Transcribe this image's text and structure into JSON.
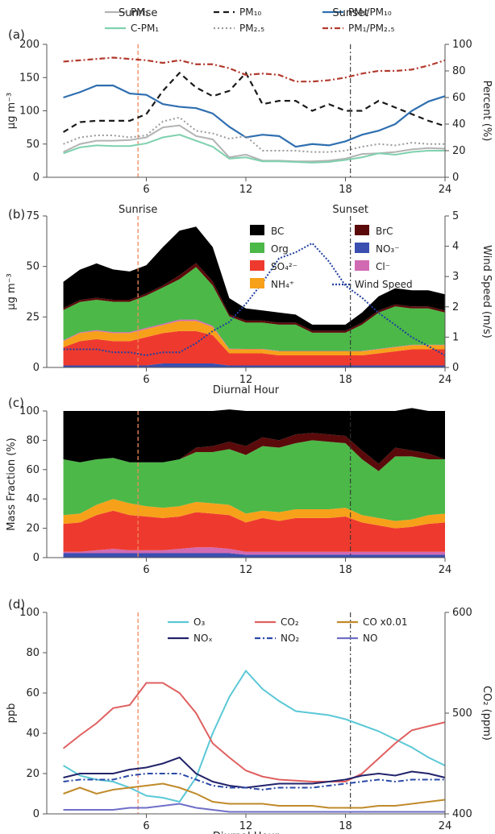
{
  "colors": {
    "pm1": "#b3b3b3",
    "cpm1": "#7fd1ae",
    "pm10": "#1a1a1a",
    "pm25": "#9a9a9a",
    "pm1_pm10": "#2f6fb0",
    "pm1_pm25": "#b23a2e",
    "bc": "#000000",
    "brc": "#5a0a0a",
    "org": "#4cb848",
    "no3": "#3a4fb0",
    "so4": "#ee3a2e",
    "cl": "#d16ab3",
    "nh4": "#f7a11a",
    "wind": "#1f3f9f",
    "o3": "#5bc8d6",
    "co2": "#e06060",
    "co": "#c08a2a",
    "nox": "#23236b",
    "no2": "#2b4aa8",
    "no": "#6f6fc8",
    "sunrise": "#f08a5a",
    "sunset": "#333333"
  },
  "labels": {
    "sunrise": "Sunrise",
    "sunset": "Sunset",
    "diurnal_hour": "Diurnal Hour"
  },
  "chart_data": [
    {
      "panel": "(a)",
      "type": "line",
      "x": [
        1,
        2,
        3,
        4,
        5,
        6,
        7,
        8,
        9,
        10,
        11,
        12,
        13,
        14,
        15,
        16,
        17,
        18,
        19,
        20,
        21,
        22,
        23,
        24
      ],
      "xlim": [
        0,
        24
      ],
      "xticks": [
        "6",
        "12",
        "18",
        "24"
      ],
      "ylabel": "μg m⁻³",
      "ylim": [
        0,
        200
      ],
      "yticks": [
        "0",
        "50",
        "100",
        "150",
        "200"
      ],
      "y2label": "Percent (%)",
      "y2lim": [
        0,
        100
      ],
      "y2ticks": [
        "0",
        "20",
        "40",
        "60",
        "80",
        "100"
      ],
      "sunrise_hour": 5.5,
      "sunset_hour": 18.3,
      "series": [
        {
          "key": "pm1",
          "legend": "PM₁",
          "axis": "left",
          "dash": "solid",
          "values": [
            38,
            50,
            55,
            55,
            56,
            60,
            75,
            78,
            62,
            57,
            30,
            34,
            25,
            25,
            24,
            24,
            25,
            28,
            35,
            36,
            38,
            42,
            44,
            43
          ]
        },
        {
          "key": "pm10",
          "legend": "PM₁₀",
          "axis": "left",
          "dash": "dash",
          "values": [
            68,
            83,
            85,
            85,
            85,
            95,
            130,
            157,
            135,
            122,
            130,
            157,
            110,
            115,
            115,
            100,
            110,
            100,
            100,
            115,
            105,
            95,
            85,
            77
          ]
        },
        {
          "key": "pm1_pm10",
          "legend": "PM₁/PM₁₀",
          "axis": "right",
          "dash": "solid",
          "values": [
            60,
            64,
            69,
            69,
            63,
            62,
            55,
            53,
            52,
            48,
            38,
            30,
            32,
            31,
            23,
            25,
            24,
            27,
            32,
            35,
            40,
            50,
            57,
            61
          ]
        },
        {
          "key": "cpm1",
          "legend": "C-PM₁",
          "axis": "left",
          "dash": "solid",
          "values": [
            36,
            45,
            48,
            47,
            47,
            51,
            60,
            64,
            55,
            46,
            28,
            30,
            24,
            24,
            23,
            22,
            23,
            26,
            30,
            36,
            34,
            38,
            40,
            40
          ]
        },
        {
          "key": "pm25",
          "legend": "PM₂.₅",
          "axis": "left",
          "dash": "dot",
          "values": [
            50,
            60,
            63,
            63,
            60,
            63,
            84,
            90,
            70,
            66,
            58,
            62,
            40,
            40,
            40,
            38,
            38,
            40,
            46,
            50,
            48,
            52,
            50,
            50
          ]
        },
        {
          "key": "pm1_pm25",
          "legend": "PM₁/PM₂.₅",
          "axis": "right",
          "dash": "dashdot",
          "values": [
            87,
            88,
            89,
            90,
            89,
            88,
            86,
            88,
            85,
            85,
            82,
            77,
            78,
            77,
            72,
            72,
            73,
            75,
            78,
            80,
            80,
            81,
            84,
            88
          ]
        }
      ]
    },
    {
      "panel": "(b)",
      "type": "area",
      "x": [
        1,
        2,
        3,
        4,
        5,
        6,
        7,
        8,
        9,
        10,
        11,
        12,
        13,
        14,
        15,
        16,
        17,
        18,
        19,
        20,
        21,
        22,
        23,
        24
      ],
      "xlim": [
        0,
        24
      ],
      "xticks": [
        "6",
        "12",
        "18",
        "24"
      ],
      "xlabel": "Diurnal Hour",
      "ylabel": "μg m⁻³",
      "ylim": [
        0,
        75
      ],
      "yticks": [
        "0",
        "25",
        "50",
        "75"
      ],
      "y2label": "Wind Speed (m/s)",
      "y2lim": [
        0,
        5
      ],
      "y2ticks": [
        "0",
        "1",
        "2",
        "3",
        "4",
        "5"
      ],
      "sunrise_hour": 5.5,
      "sunset_hour": 18.3,
      "stack_order": [
        "no3",
        "so4",
        "nh4",
        "cl",
        "org",
        "brc",
        "bc"
      ],
      "series": [
        {
          "key": "bc",
          "legend": "BC",
          "values": [
            13,
            15,
            17,
            15,
            14,
            14,
            19,
            22,
            18,
            17,
            8,
            6,
            5,
            5,
            4,
            3,
            3,
            3,
            5,
            7,
            8,
            8,
            8,
            8
          ]
        },
        {
          "key": "brc",
          "legend": "BrC",
          "values": [
            1,
            1,
            1,
            1,
            1,
            1,
            1,
            2,
            2,
            2,
            1,
            1,
            1,
            1,
            1,
            1,
            1,
            1,
            1,
            1,
            1,
            1,
            1,
            1
          ]
        },
        {
          "key": "org",
          "legend": "Org",
          "values": [
            15,
            15,
            15,
            15,
            15,
            16,
            18,
            20,
            26,
            20,
            16,
            13,
            13,
            13,
            13,
            9,
            9,
            9,
            13,
            18,
            20,
            18,
            18,
            16
          ]
        },
        {
          "key": "no3",
          "legend": "NO₃⁻",
          "values": [
            1,
            1,
            1,
            1,
            1,
            1,
            2,
            2,
            2,
            2,
            1,
            1,
            1,
            1,
            1,
            1,
            1,
            1,
            1,
            1,
            1,
            1,
            1,
            1
          ]
        },
        {
          "key": "so4",
          "legend": "SO₄²⁻",
          "values": [
            9,
            12,
            13,
            12,
            12,
            14,
            15,
            16,
            16,
            14,
            6,
            6,
            6,
            5,
            5,
            5,
            5,
            5,
            5,
            6,
            7,
            8,
            8,
            8
          ]
        },
        {
          "key": "cl",
          "legend": "Cl⁻",
          "values": [
            0.4,
            0.4,
            0.5,
            0.5,
            0.5,
            0.6,
            0.6,
            0.7,
            0.7,
            0.6,
            0.3,
            0.2,
            0.2,
            0.2,
            0.2,
            0.2,
            0.2,
            0.2,
            0.2,
            0.2,
            0.2,
            0.2,
            0.2,
            0.2
          ]
        },
        {
          "key": "nh4",
          "legend": "NH₄⁺",
          "values": [
            3,
            4,
            4,
            4,
            4,
            4,
            4,
            5,
            5,
            4,
            2,
            2,
            2,
            2,
            2,
            2,
            2,
            2,
            2,
            2,
            2,
            2,
            2,
            2
          ]
        }
      ],
      "wind": {
        "key": "wind",
        "legend": "Wind Speed",
        "axis": "right",
        "values": [
          0.6,
          0.6,
          0.6,
          0.5,
          0.5,
          0.4,
          0.5,
          0.5,
          0.8,
          1.2,
          1.5,
          2.1,
          2.8,
          3.6,
          3.8,
          4.1,
          3.5,
          2.7,
          2.3,
          1.8,
          1.4,
          1.0,
          0.7,
          0.4
        ]
      }
    },
    {
      "panel": "(c)",
      "type": "area",
      "x": [
        1,
        2,
        3,
        4,
        5,
        6,
        7,
        8,
        9,
        10,
        11,
        12,
        13,
        14,
        15,
        16,
        17,
        18,
        19,
        20,
        21,
        22,
        23,
        24
      ],
      "xlim": [
        0,
        24
      ],
      "xticks": [
        "6",
        "12",
        "18",
        "24"
      ],
      "ylabel": "Mass Fraction (%)",
      "ylim": [
        0,
        100
      ],
      "yticks": [
        "0",
        "20",
        "40",
        "60",
        "80",
        "100"
      ],
      "sunrise_hour": 5.5,
      "sunset_hour": 18.3,
      "stack_order": [
        "no3",
        "cl",
        "so4",
        "nh4",
        "org",
        "brc",
        "bc"
      ],
      "series": [
        {
          "key": "no3",
          "values": [
            3,
            3,
            3,
            3,
            3,
            3,
            3,
            3,
            3,
            3,
            3,
            2,
            2,
            2,
            2,
            2,
            2,
            2,
            2,
            2,
            2,
            2,
            2,
            2
          ]
        },
        {
          "key": "cl",
          "values": [
            1,
            1,
            2,
            3,
            2,
            2,
            2,
            3,
            4,
            4,
            3,
            2,
            2,
            2,
            2,
            2,
            2,
            2,
            2,
            2,
            2,
            2,
            2,
            2
          ]
        },
        {
          "key": "so4",
          "values": [
            19,
            20,
            24,
            26,
            24,
            23,
            22,
            22,
            24,
            23,
            23,
            20,
            23,
            21,
            23,
            23,
            23,
            24,
            20,
            18,
            16,
            17,
            19,
            20
          ]
        },
        {
          "key": "nh4",
          "values": [
            6,
            6,
            7,
            8,
            8,
            7,
            7,
            7,
            7,
            7,
            7,
            6,
            5,
            6,
            6,
            6,
            6,
            6,
            5,
            5,
            5,
            5,
            6,
            6
          ]
        },
        {
          "key": "org",
          "values": [
            38,
            35,
            31,
            28,
            28,
            30,
            31,
            32,
            34,
            35,
            38,
            40,
            44,
            44,
            45,
            47,
            46,
            44,
            38,
            32,
            44,
            43,
            38,
            37
          ]
        },
        {
          "key": "brc",
          "values": [
            0,
            0,
            0,
            0,
            0,
            0,
            0,
            0,
            3,
            4,
            5,
            6,
            6,
            5,
            6,
            5,
            5,
            5,
            6,
            5,
            6,
            4,
            4,
            0
          ]
        },
        {
          "key": "bc",
          "values": [
            33,
            35,
            33,
            32,
            35,
            35,
            35,
            33,
            25,
            24,
            22,
            24,
            18,
            20,
            16,
            15,
            16,
            17,
            27,
            36,
            25,
            29,
            29,
            33
          ]
        }
      ]
    },
    {
      "panel": "(d)",
      "type": "line",
      "x": [
        1,
        2,
        3,
        4,
        5,
        6,
        7,
        8,
        9,
        10,
        11,
        12,
        13,
        14,
        15,
        16,
        17,
        18,
        19,
        20,
        21,
        22,
        23,
        24
      ],
      "xlim": [
        0,
        24
      ],
      "xticks": [
        "6",
        "12",
        "18",
        "24"
      ],
      "xlabel": "Diurnal Hour",
      "ylabel": "ppb",
      "ylim": [
        0,
        100
      ],
      "yticks": [
        "0",
        "20",
        "40",
        "60",
        "80",
        "100"
      ],
      "y2label": "CO₂ (ppm)",
      "y2lim": [
        400,
        600
      ],
      "y2ticks": [
        "400",
        "500",
        "600"
      ],
      "sunrise_hour": 5.5,
      "sunset_hour": 18.3,
      "series": [
        {
          "key": "o3",
          "legend": "O₃",
          "axis": "left",
          "dash": "solid",
          "values": [
            24,
            19,
            17,
            16,
            13,
            9,
            8,
            6,
            18,
            40,
            58,
            71,
            62,
            56,
            51,
            50,
            49,
            47,
            44,
            41,
            37,
            33,
            28,
            24
          ]
        },
        {
          "key": "co2",
          "legend": "CO₂",
          "axis": "right",
          "dash": "solid",
          "values": [
            465,
            478,
            490,
            505,
            508,
            530,
            530,
            520,
            500,
            470,
            456,
            443,
            437,
            434,
            433,
            432,
            432,
            432,
            440,
            455,
            470,
            483,
            487,
            491
          ]
        },
        {
          "key": "co",
          "legend": "CO x0.01",
          "axis": "left",
          "dash": "solid",
          "values": [
            10,
            13,
            10,
            12,
            13,
            14,
            15,
            13,
            10,
            6,
            5,
            5,
            5,
            4,
            4,
            4,
            3,
            3,
            3,
            4,
            4,
            5,
            6,
            7
          ]
        },
        {
          "key": "nox",
          "legend": "NOₓ",
          "axis": "left",
          "dash": "solid",
          "values": [
            18,
            20,
            20,
            20,
            22,
            23,
            25,
            28,
            20,
            16,
            14,
            13,
            14,
            15,
            15,
            15,
            16,
            17,
            19,
            20,
            19,
            21,
            20,
            18
          ]
        },
        {
          "key": "no2",
          "legend": "NO₂",
          "axis": "left",
          "dash": "dashdot",
          "values": [
            16,
            17,
            17,
            17,
            19,
            20,
            20,
            20,
            17,
            14,
            13,
            13,
            12,
            13,
            13,
            13,
            14,
            15,
            16,
            17,
            16,
            17,
            17,
            17
          ]
        },
        {
          "key": "no",
          "legend": "NO",
          "axis": "left",
          "dash": "solid",
          "values": [
            2,
            2,
            2,
            2,
            3,
            3,
            4,
            5,
            3,
            2,
            1,
            1,
            1,
            1,
            1,
            1,
            1,
            1,
            1,
            1,
            1,
            1,
            1,
            1
          ]
        }
      ]
    }
  ]
}
